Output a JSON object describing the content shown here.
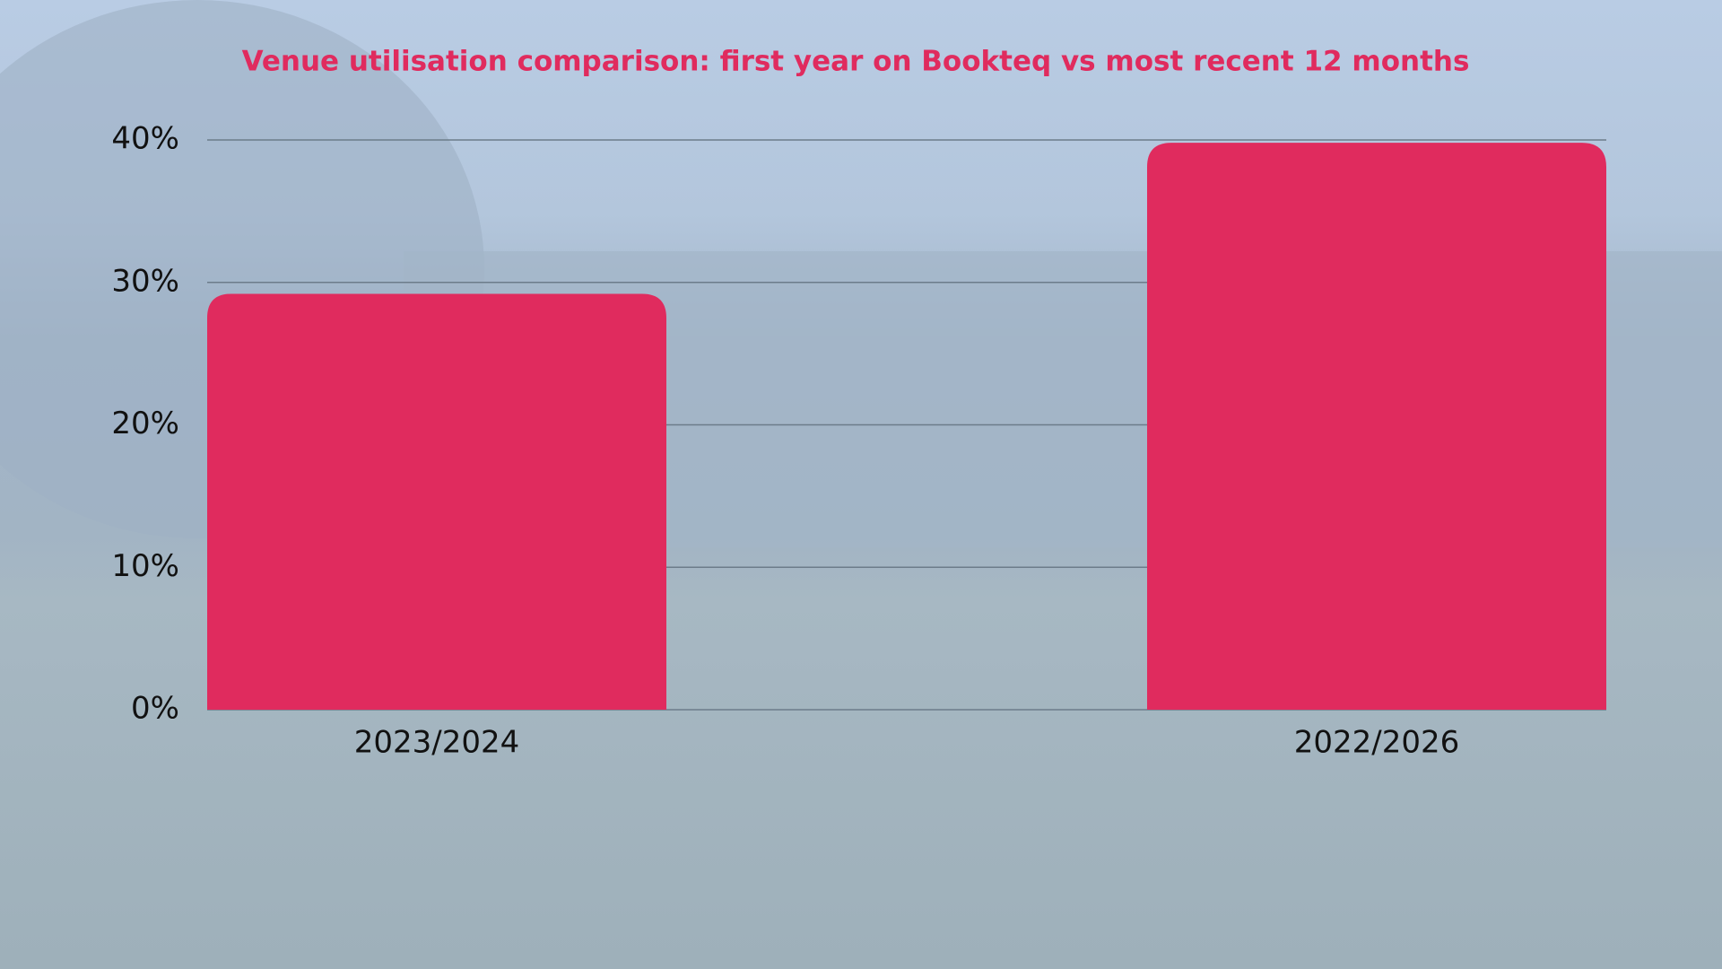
{
  "chart_data": {
    "type": "bar",
    "title": "Venue utilisation comparison: first year on Bookteq vs most recent 12 months",
    "categories": [
      "2023/2024",
      "2022/2026"
    ],
    "values": [
      29.2,
      39.8
    ],
    "color": "#e02b5e",
    "ylim": [
      0,
      40
    ],
    "yticks": [
      {
        "value": 0,
        "label": "0%"
      },
      {
        "value": 10,
        "label": "10%"
      },
      {
        "value": 20,
        "label": "20%"
      },
      {
        "value": 30,
        "label": "30%"
      },
      {
        "value": 40,
        "label": "40%"
      }
    ],
    "grid": true
  }
}
